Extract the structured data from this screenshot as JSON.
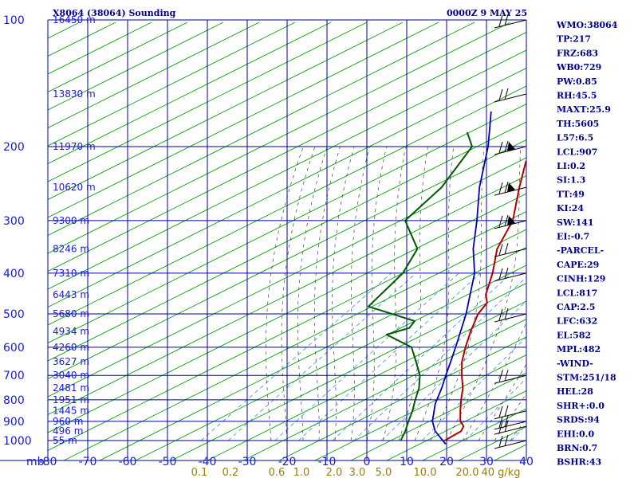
{
  "header": {
    "title": "X8064 (38064) Sounding",
    "datetime": "0000Z  9 MAY 25"
  },
  "stats": [
    "WMO:38064",
    "TP:217",
    "FRZ:683",
    "WB0:729",
    "PW:0.85",
    "RH:45.5",
    "MAXT:25.9",
    "TH:5605",
    "L57:6.5",
    "LCL:907",
    "LI:0.2",
    "SI:1.3",
    "TT:49",
    "KI:24",
    "SW:141",
    "EI:-0.7",
    "-PARCEL-",
    "CAPE:29",
    "CINH:129",
    "LCL:817",
    "CAP:2.5",
    "LFC:632",
    "EL:582",
    "MPL:482",
    "-WIND-",
    "STM:251/18",
    "HEL:28",
    "SHR+:0.0",
    "SRDS:94",
    "EHI:0.0",
    "BRN:0.7",
    "BSHR:43"
  ],
  "colors": {
    "grid": "#0000a0",
    "dry_adiabat": "#00a000",
    "moist_adiabat": "#404040",
    "mixing_ratio": "#3c8cdc",
    "temperature": "#b00000",
    "dewpoint": "#005a00",
    "parcel": "#0000b4",
    "tick_text": "#1a1ad6",
    "mixing_text": "#9a7d0a",
    "stats_text": "#00008b"
  },
  "chart_data": {
    "type": "line",
    "diagram": "skew-T log-P",
    "pressure_levels_hpa": [
      100,
      200,
      300,
      400,
      500,
      600,
      700,
      800,
      900,
      1000
    ],
    "pressure_axis_label": "mb",
    "temperature_ticks_c": [
      -80,
      -70,
      -60,
      -50,
      -40,
      -30,
      -20,
      -10,
      0,
      10,
      20,
      30,
      40
    ],
    "temperature_tick_labels": [
      "-80",
      "-70",
      "-60",
      "-50",
      "-40",
      "-30",
      "-20",
      "-10",
      "0",
      "10",
      "20",
      "30",
      "40"
    ],
    "xlim_c": [
      -80,
      40
    ],
    "ylim_hpa": [
      1000,
      100
    ],
    "y_scale": "log",
    "grid": true,
    "height_labels": [
      {
        "p": 100,
        "label": "16450 m"
      },
      {
        "p": 150,
        "label": "13830 m"
      },
      {
        "p": 200,
        "label": "11970 m"
      },
      {
        "p": 250,
        "label": "10620 m"
      },
      {
        "p": 300,
        "label": "9300 m"
      },
      {
        "p": 350,
        "label": "8246 m"
      },
      {
        "p": 400,
        "label": "7310 m"
      },
      {
        "p": 450,
        "label": "6443 m"
      },
      {
        "p": 500,
        "label": "5680 m"
      },
      {
        "p": 550,
        "label": "4934 m"
      },
      {
        "p": 600,
        "label": "4260 m"
      },
      {
        "p": 650,
        "label": "3627 m"
      },
      {
        "p": 700,
        "label": "3040 m"
      },
      {
        "p": 750,
        "label": "2481 m"
      },
      {
        "p": 800,
        "label": "1951 m"
      },
      {
        "p": 850,
        "label": "1445 m"
      },
      {
        "p": 900,
        "label": "960 m"
      },
      {
        "p": 950,
        "label": "496 m"
      },
      {
        "p": 1000,
        "label": "55 m"
      }
    ],
    "mixing_ratio_labels": [
      "0.1",
      "0.2",
      "0.6",
      "1.0",
      "2.0",
      "3.0",
      "5.0",
      "10.0",
      "20.0",
      "40 g/kg"
    ],
    "mixing_ratio_values": [
      0.1,
      0.2,
      0.6,
      1.0,
      2.0,
      3.0,
      5.0,
      10.0,
      20.0,
      40.0
    ],
    "series": [
      {
        "name": "temperature",
        "points": [
          {
            "p": 1000,
            "t": 19.5
          },
          {
            "p": 950,
            "t": 20.5
          },
          {
            "p": 925,
            "t": 19.5
          },
          {
            "p": 900,
            "t": 17.0
          },
          {
            "p": 850,
            "t": 13.5
          },
          {
            "p": 800,
            "t": 10.0
          },
          {
            "p": 750,
            "t": 6.5
          },
          {
            "p": 700,
            "t": 2.0
          },
          {
            "p": 650,
            "t": -2.5
          },
          {
            "p": 600,
            "t": -6.5
          },
          {
            "p": 550,
            "t": -10.5
          },
          {
            "p": 500,
            "t": -14.5
          },
          {
            "p": 470,
            "t": -16.0
          },
          {
            "p": 450,
            "t": -19.0
          },
          {
            "p": 400,
            "t": -24.5
          },
          {
            "p": 350,
            "t": -31.5
          },
          {
            "p": 300,
            "t": -37.0
          },
          {
            "p": 250,
            "t": -46.5
          },
          {
            "p": 217,
            "t": -53.5
          },
          {
            "p": 200,
            "t": -54.5
          },
          {
            "p": 180,
            "t": -56.0
          },
          {
            "p": 160,
            "t": -58.5
          },
          {
            "p": 150,
            "t": -59.0
          },
          {
            "p": 120,
            "t": -65.0
          },
          {
            "p": 100,
            "t": -69.0
          }
        ]
      },
      {
        "name": "dewpoint",
        "points": [
          {
            "p": 1000,
            "t": 8.5
          },
          {
            "p": 950,
            "t": 6.5
          },
          {
            "p": 900,
            "t": 4.0
          },
          {
            "p": 850,
            "t": 1.5
          },
          {
            "p": 800,
            "t": -1.5
          },
          {
            "p": 750,
            "t": -4.5
          },
          {
            "p": 700,
            "t": -8.5
          },
          {
            "p": 650,
            "t": -14.0
          },
          {
            "p": 600,
            "t": -20.0
          },
          {
            "p": 560,
            "t": -30.5
          },
          {
            "p": 540,
            "t": -27.0
          },
          {
            "p": 520,
            "t": -28.0
          },
          {
            "p": 480,
            "t": -44.5
          },
          {
            "p": 430,
            "t": -46.0
          },
          {
            "p": 400,
            "t": -47.0
          },
          {
            "p": 350,
            "t": -51.5
          },
          {
            "p": 300,
            "t": -64.0
          },
          {
            "p": 250,
            "t": -66.0
          },
          {
            "p": 200,
            "t": -72.0
          },
          {
            "p": 185,
            "t": -78.0
          }
        ]
      },
      {
        "name": "parcel",
        "points": [
          {
            "p": 1020,
            "t": 21.0
          },
          {
            "p": 950,
            "t": 14.0
          },
          {
            "p": 900,
            "t": 10.0
          },
          {
            "p": 817,
            "t": 4.8
          },
          {
            "p": 750,
            "t": 1.2
          },
          {
            "p": 700,
            "t": -2.0
          },
          {
            "p": 632,
            "t": -6.6
          },
          {
            "p": 582,
            "t": -10.4
          },
          {
            "p": 500,
            "t": -17.5
          },
          {
            "p": 400,
            "t": -29.0
          },
          {
            "p": 350,
            "t": -37.5
          },
          {
            "p": 300,
            "t": -46.0
          },
          {
            "p": 250,
            "t": -56.5
          },
          {
            "p": 200,
            "t": -68.0
          },
          {
            "p": 180,
            "t": -74.0
          },
          {
            "p": 165,
            "t": -79.0
          }
        ]
      }
    ],
    "wind_barbs": [
      {
        "p": 100
      },
      {
        "p": 150
      },
      {
        "p": 200
      },
      {
        "p": 250
      },
      {
        "p": 300
      },
      {
        "p": 350
      },
      {
        "p": 400
      },
      {
        "p": 500
      },
      {
        "p": 700
      },
      {
        "p": 850
      },
      {
        "p": 900
      },
      {
        "p": 925
      },
      {
        "p": 1000
      }
    ]
  }
}
